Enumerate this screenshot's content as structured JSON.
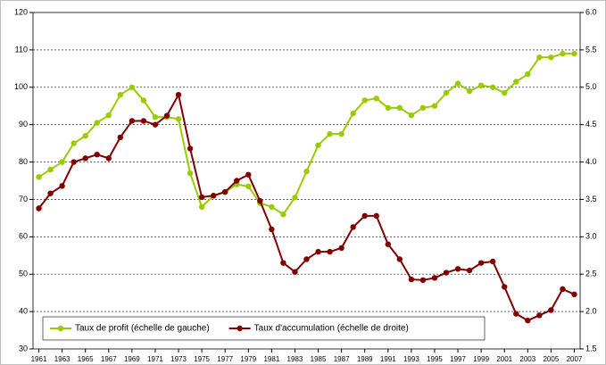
{
  "chart_data": {
    "type": "line",
    "x": [
      1961,
      1962,
      1963,
      1964,
      1965,
      1966,
      1967,
      1968,
      1969,
      1970,
      1971,
      1972,
      1973,
      1974,
      1975,
      1976,
      1977,
      1978,
      1979,
      1980,
      1981,
      1982,
      1983,
      1984,
      1985,
      1986,
      1987,
      1988,
      1989,
      1990,
      1991,
      1992,
      1993,
      1994,
      1995,
      1996,
      1997,
      1998,
      1999,
      2000,
      2001,
      2002,
      2003,
      2004,
      2005,
      2006,
      2007
    ],
    "series": [
      {
        "name": "Taux de profit (échelle de gauche)",
        "color": "#99cc00",
        "values": [
          76,
          78,
          80,
          85,
          87,
          90.5,
          92.5,
          98,
          100,
          96.5,
          92,
          92,
          91.5,
          77,
          68,
          71,
          72,
          74,
          73.5,
          69,
          68,
          66,
          70.5,
          77.5,
          84.5,
          87.5,
          87.5,
          93,
          96.5,
          97,
          94.5,
          94.5,
          92.5,
          94.5,
          95,
          98.5,
          101,
          99,
          100.5,
          100,
          98.5,
          101.5,
          103.5,
          108,
          108,
          109,
          109
        ]
      },
      {
        "name": "Taux d'accumulation (échelle de droite)",
        "color": "#800000",
        "axis": "y2",
        "values": [
          3.38,
          3.58,
          3.68,
          4.0,
          4.05,
          4.1,
          4.05,
          4.33,
          4.55,
          4.55,
          4.5,
          4.62,
          4.9,
          4.18,
          3.53,
          3.55,
          3.6,
          3.75,
          3.83,
          3.48,
          3.1,
          2.65,
          2.53,
          2.7,
          2.8,
          2.8,
          2.85,
          3.13,
          3.28,
          3.28,
          2.9,
          2.7,
          2.43,
          2.42,
          2.45,
          2.52,
          2.57,
          2.55,
          2.65,
          2.67,
          2.33,
          1.97,
          1.88,
          1.95,
          2.02,
          2.3,
          2.23
        ]
      }
    ],
    "xlim": [
      1960.5,
      2007.5
    ],
    "xticks": [
      1961,
      1963,
      1965,
      1967,
      1969,
      1971,
      1973,
      1975,
      1977,
      1979,
      1981,
      1983,
      1985,
      1987,
      1989,
      1991,
      1993,
      1995,
      1997,
      1999,
      2001,
      2003,
      2005,
      2007
    ],
    "ylim": [
      30,
      120
    ],
    "yticks": [
      30,
      40,
      50,
      60,
      70,
      80,
      90,
      100,
      110,
      120
    ],
    "y2lim": [
      1.5,
      6
    ],
    "y2ticks": [
      {
        "value": 1.5,
        "label": "1.5"
      },
      {
        "value": 2,
        "label": "2.0"
      },
      {
        "value": 2.5,
        "label": "2.5"
      },
      {
        "value": 3,
        "label": "3.0"
      },
      {
        "value": 3.5,
        "label": "3.5"
      },
      {
        "value": 4,
        "label": "4.0"
      },
      {
        "value": 4.5,
        "label": "4.5"
      },
      {
        "value": 5,
        "label": "5.0"
      },
      {
        "value": 5.5,
        "label": "5.5"
      },
      {
        "value": 6,
        "label": "6.0"
      }
    ],
    "grid": true,
    "legend": "bottom-left"
  }
}
